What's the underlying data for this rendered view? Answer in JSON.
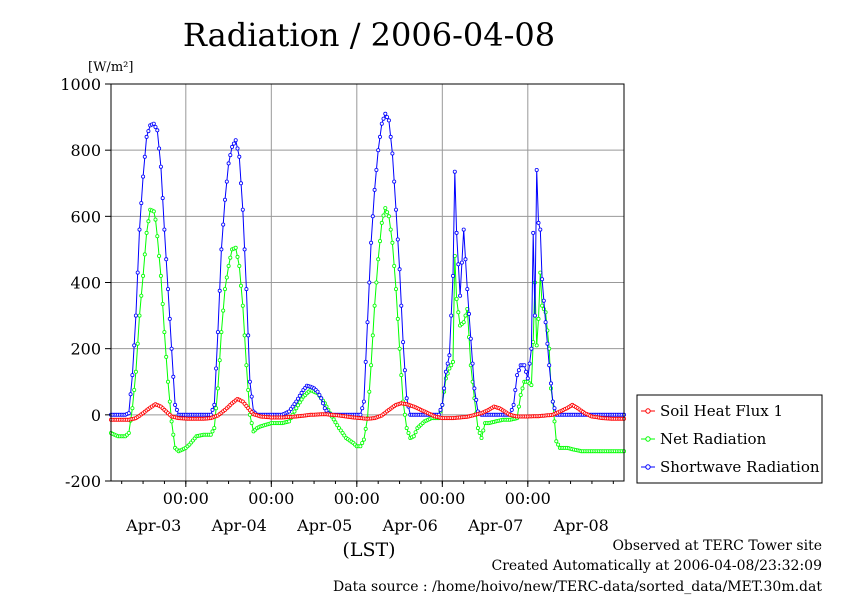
{
  "chart_data": {
    "type": "line",
    "title": "Radiation / 2006-04-08",
    "ylabel_unit": "[W/m²]",
    "xlabel": "(LST)",
    "ylim": [
      -200,
      1000
    ],
    "xlim": [
      0,
      144
    ],
    "grid": true,
    "legend_position": "bottom-right",
    "y_ticks": [
      -200,
      0,
      200,
      400,
      600,
      800,
      1000
    ],
    "x_ticks_time": [
      {
        "x": 21,
        "label": "00:00"
      },
      {
        "x": 45,
        "label": "00:00"
      },
      {
        "x": 69,
        "label": "00:00"
      },
      {
        "x": 93,
        "label": "00:00"
      },
      {
        "x": 117,
        "label": "00:00"
      }
    ],
    "x_ticks_date": [
      {
        "x": 12,
        "label": "Apr-03"
      },
      {
        "x": 36,
        "label": "Apr-04"
      },
      {
        "x": 60,
        "label": "Apr-05"
      },
      {
        "x": 84,
        "label": "Apr-06"
      },
      {
        "x": 108,
        "label": "Apr-07"
      },
      {
        "x": 132,
        "label": "Apr-08"
      }
    ],
    "series": [
      {
        "name": "Soil Heat Flux 1",
        "color": "#ff0000",
        "marker": "circle",
        "points": [
          [
            0,
            -15
          ],
          [
            3,
            -15
          ],
          [
            5,
            -15
          ],
          [
            7,
            -10
          ],
          [
            9,
            5
          ],
          [
            11,
            22
          ],
          [
            12.5,
            32
          ],
          [
            14,
            25
          ],
          [
            15.5,
            10
          ],
          [
            17,
            -5
          ],
          [
            19,
            -10
          ],
          [
            22,
            -12
          ],
          [
            26,
            -12
          ],
          [
            28,
            -10
          ],
          [
            30,
            -2
          ],
          [
            32,
            15
          ],
          [
            34,
            35
          ],
          [
            35.5,
            48
          ],
          [
            37,
            40
          ],
          [
            38.5,
            20
          ],
          [
            40,
            2
          ],
          [
            42,
            -5
          ],
          [
            45,
            -8
          ],
          [
            48,
            -8
          ],
          [
            52,
            -5
          ],
          [
            56,
            0
          ],
          [
            60,
            2
          ],
          [
            64,
            -2
          ],
          [
            68,
            -8
          ],
          [
            72,
            -12
          ],
          [
            74,
            -10
          ],
          [
            76,
            -2
          ],
          [
            78,
            15
          ],
          [
            80,
            30
          ],
          [
            81.5,
            35
          ],
          [
            83,
            32
          ],
          [
            85,
            25
          ],
          [
            87,
            15
          ],
          [
            89,
            5
          ],
          [
            91,
            -5
          ],
          [
            93,
            -10
          ],
          [
            96,
            -10
          ],
          [
            100,
            -6
          ],
          [
            104,
            5
          ],
          [
            106,
            15
          ],
          [
            107.5,
            25
          ],
          [
            109,
            20
          ],
          [
            110.5,
            10
          ],
          [
            112,
            0
          ],
          [
            114,
            -5
          ],
          [
            117,
            -5
          ],
          [
            120,
            -4
          ],
          [
            124,
            0
          ],
          [
            126,
            10
          ],
          [
            128,
            20
          ],
          [
            129.5,
            30
          ],
          [
            131,
            20
          ],
          [
            133,
            5
          ],
          [
            135,
            -5
          ],
          [
            138,
            -10
          ],
          [
            141,
            -12
          ],
          [
            144,
            -12
          ]
        ]
      },
      {
        "name": "Net Radiation",
        "color": "#00ff00",
        "marker": "circle",
        "points": [
          [
            0,
            -55
          ],
          [
            2,
            -65
          ],
          [
            4,
            -65
          ],
          [
            5,
            -55
          ],
          [
            6,
            20
          ],
          [
            7,
            130
          ],
          [
            8,
            300
          ],
          [
            9,
            420
          ],
          [
            10,
            550
          ],
          [
            11,
            620
          ],
          [
            12,
            615
          ],
          [
            12.5,
            590
          ],
          [
            13,
            540
          ],
          [
            14,
            420
          ],
          [
            15,
            250
          ],
          [
            16,
            100
          ],
          [
            17,
            -20
          ],
          [
            18,
            -100
          ],
          [
            19,
            -110
          ],
          [
            20,
            -105
          ],
          [
            21,
            -100
          ],
          [
            22,
            -90
          ],
          [
            24,
            -65
          ],
          [
            26,
            -60
          ],
          [
            28,
            -60
          ],
          [
            29,
            -40
          ],
          [
            30,
            80
          ],
          [
            31,
            250
          ],
          [
            32,
            380
          ],
          [
            33,
            450
          ],
          [
            34,
            500
          ],
          [
            35,
            505
          ],
          [
            36,
            450
          ],
          [
            37,
            330
          ],
          [
            38,
            150
          ],
          [
            39,
            0
          ],
          [
            40,
            -50
          ],
          [
            41,
            -40
          ],
          [
            42,
            -35
          ],
          [
            45,
            -25
          ],
          [
            48,
            -25
          ],
          [
            50,
            -20
          ],
          [
            52,
            20
          ],
          [
            54,
            55
          ],
          [
            56,
            75
          ],
          [
            58,
            65
          ],
          [
            60,
            35
          ],
          [
            62,
            -5
          ],
          [
            64,
            -40
          ],
          [
            66,
            -70
          ],
          [
            68,
            -85
          ],
          [
            69,
            -95
          ],
          [
            70,
            -95
          ],
          [
            71,
            -75
          ],
          [
            72,
            -10
          ],
          [
            73,
            150
          ],
          [
            74,
            330
          ],
          [
            75,
            470
          ],
          [
            76,
            580
          ],
          [
            77,
            625
          ],
          [
            78,
            600
          ],
          [
            79,
            520
          ],
          [
            80,
            380
          ],
          [
            81,
            200
          ],
          [
            82,
            40
          ],
          [
            83,
            -40
          ],
          [
            84,
            -70
          ],
          [
            85,
            -65
          ],
          [
            86,
            -40
          ],
          [
            88,
            -20
          ],
          [
            90,
            -10
          ],
          [
            92,
            -10
          ],
          [
            93,
            30
          ],
          [
            94,
            110
          ],
          [
            95,
            140
          ],
          [
            96,
            160
          ],
          [
            96.5,
            480
          ],
          [
            97,
            350
          ],
          [
            98,
            270
          ],
          [
            99,
            280
          ],
          [
            100,
            320
          ],
          [
            101,
            150
          ],
          [
            102,
            50
          ],
          [
            103,
            -40
          ],
          [
            104,
            -70
          ],
          [
            105,
            -25
          ],
          [
            106,
            -25
          ],
          [
            108,
            -20
          ],
          [
            110,
            -15
          ],
          [
            112,
            -15
          ],
          [
            114,
            -10
          ],
          [
            115,
            60
          ],
          [
            116,
            100
          ],
          [
            117,
            100
          ],
          [
            118,
            90
          ],
          [
            118.5,
            220
          ],
          [
            119,
            400
          ],
          [
            119.5,
            210
          ],
          [
            120,
            290
          ],
          [
            120.5,
            430
          ],
          [
            121,
            330
          ],
          [
            122,
            310
          ],
          [
            123,
            200
          ],
          [
            123.5,
            80
          ],
          [
            124,
            40
          ],
          [
            125,
            -80
          ],
          [
            126,
            -100
          ],
          [
            128,
            -100
          ],
          [
            130,
            -105
          ],
          [
            132,
            -110
          ],
          [
            144,
            -110
          ]
        ]
      },
      {
        "name": "Shortwave Radiation",
        "color": "#0000ff",
        "marker": "circle",
        "points": [
          [
            0,
            0
          ],
          [
            4,
            0
          ],
          [
            5,
            5
          ],
          [
            6,
            120
          ],
          [
            7,
            300
          ],
          [
            8,
            560
          ],
          [
            9,
            720
          ],
          [
            10,
            840
          ],
          [
            11,
            875
          ],
          [
            12,
            880
          ],
          [
            13,
            860
          ],
          [
            14,
            750
          ],
          [
            15,
            560
          ],
          [
            16,
            380
          ],
          [
            17,
            200
          ],
          [
            18,
            30
          ],
          [
            19,
            0
          ],
          [
            20,
            0
          ],
          [
            24,
            0
          ],
          [
            28,
            0
          ],
          [
            29,
            30
          ],
          [
            30,
            250
          ],
          [
            31,
            500
          ],
          [
            32,
            650
          ],
          [
            33,
            760
          ],
          [
            34,
            810
          ],
          [
            35,
            830
          ],
          [
            36,
            780
          ],
          [
            37,
            620
          ],
          [
            38,
            380
          ],
          [
            39,
            100
          ],
          [
            40,
            10
          ],
          [
            41,
            0
          ],
          [
            44,
            0
          ],
          [
            48,
            0
          ],
          [
            50,
            10
          ],
          [
            52,
            40
          ],
          [
            54,
            75
          ],
          [
            55,
            88
          ],
          [
            56,
            85
          ],
          [
            57,
            80
          ],
          [
            58,
            70
          ],
          [
            59,
            50
          ],
          [
            60,
            20
          ],
          [
            61,
            5
          ],
          [
            62,
            0
          ],
          [
            66,
            0
          ],
          [
            70,
            0
          ],
          [
            71,
            40
          ],
          [
            72,
            280
          ],
          [
            73,
            520
          ],
          [
            74,
            680
          ],
          [
            75,
            800
          ],
          [
            76,
            880
          ],
          [
            77,
            910
          ],
          [
            78,
            890
          ],
          [
            79,
            790
          ],
          [
            80,
            620
          ],
          [
            81,
            440
          ],
          [
            82,
            220
          ],
          [
            83,
            50
          ],
          [
            84,
            0
          ],
          [
            88,
            0
          ],
          [
            92,
            0
          ],
          [
            93,
            30
          ],
          [
            94,
            130
          ],
          [
            95,
            180
          ],
          [
            96,
            420
          ],
          [
            96.5,
            735
          ],
          [
            97,
            550
          ],
          [
            98,
            360
          ],
          [
            99,
            560
          ],
          [
            100,
            380
          ],
          [
            101,
            230
          ],
          [
            102,
            80
          ],
          [
            103,
            10
          ],
          [
            104,
            0
          ],
          [
            108,
            0
          ],
          [
            112,
            0
          ],
          [
            113,
            30
          ],
          [
            114,
            120
          ],
          [
            115,
            150
          ],
          [
            116,
            150
          ],
          [
            117,
            110
          ],
          [
            118,
            200
          ],
          [
            118.5,
            550
          ],
          [
            119,
            300
          ],
          [
            119.5,
            740
          ],
          [
            120,
            580
          ],
          [
            120.5,
            560
          ],
          [
            121,
            410
          ],
          [
            122,
            280
          ],
          [
            123,
            150
          ],
          [
            124,
            40
          ],
          [
            125,
            0
          ],
          [
            128,
            0
          ],
          [
            144,
            0
          ]
        ]
      }
    ]
  },
  "footer": {
    "line1": "Observed at TERC Tower site",
    "line2": "Created Automatically at 2006-04-08/23:32:09",
    "line3": "Data source : /home/hoivo/new/TERC-data/sorted_data/MET.30m.dat"
  }
}
